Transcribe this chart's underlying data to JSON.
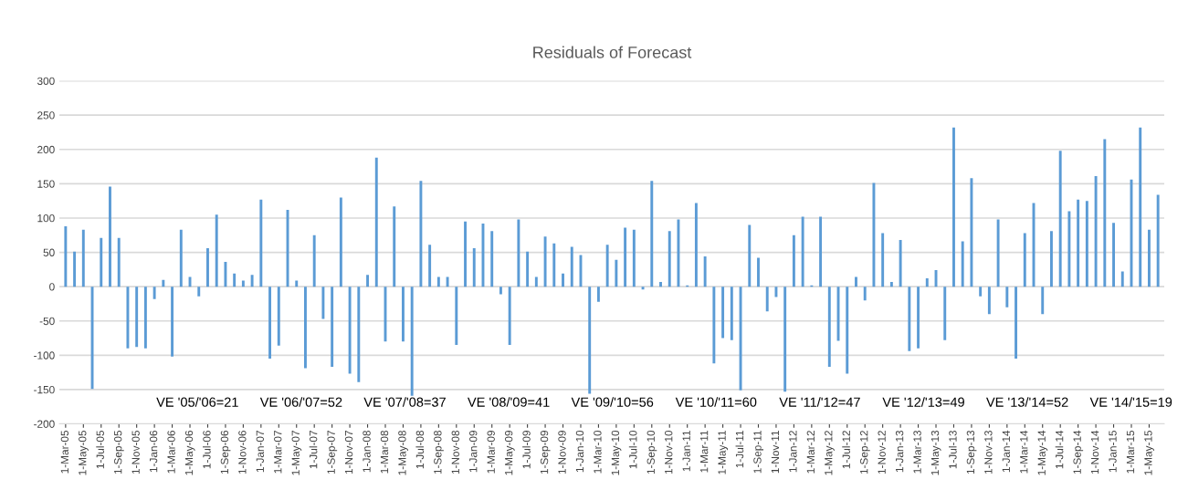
{
  "chart_data": {
    "type": "bar",
    "title": "Residuals of Forecast",
    "categories": [
      "1-Mar-05",
      null,
      "1-May-05",
      null,
      "1-Jul-05",
      null,
      "1-Sep-05",
      null,
      "1-Nov-05",
      null,
      "1-Jan-06",
      null,
      "1-Mar-06",
      null,
      "1-May-06",
      null,
      "1-Jul-06",
      null,
      "1-Sep-06",
      null,
      "1-Nov-06",
      null,
      "1-Jan-07",
      null,
      "1-Mar-07",
      null,
      "1-May-07",
      null,
      "1-Jul-07",
      null,
      "1-Sep-07",
      null,
      "1-Nov-07",
      null,
      "1-Jan-08",
      null,
      "1-Mar-08",
      null,
      "1-May-08",
      null,
      "1-Jul-08",
      null,
      "1-Sep-08",
      null,
      "1-Nov-08",
      null,
      "1-Jan-09",
      null,
      "1-Mar-09",
      null,
      "1-May-09",
      null,
      "1-Jul-09",
      null,
      "1-Sep-09",
      null,
      "1-Nov-09",
      null,
      "1-Jan-10",
      null,
      "1-Mar-10",
      null,
      "1-May-10",
      null,
      "1-Jul-10",
      null,
      "1-Sep-10",
      null,
      "1-Nov-10",
      null,
      "1-Jan-11",
      null,
      "1-Mar-11",
      null,
      "1-May-11",
      null,
      "1-Jul-11",
      null,
      "1-Sep-11",
      null,
      "1-Nov-11",
      null,
      "1-Jan-12",
      null,
      "1-Mar-12",
      null,
      "1-May-12",
      null,
      "1-Jul-12",
      null,
      "1-Sep-12",
      null,
      "1-Nov-12",
      null,
      "1-Jan-13",
      null,
      "1-Mar-13",
      null,
      "1-May-13",
      null,
      "1-Jul-13",
      null,
      "1-Sep-13",
      null,
      "1-Nov-13",
      null,
      "1-Jan-14",
      null,
      "1-Mar-14",
      null,
      "1-May-14",
      null,
      "1-Jul-14",
      null,
      "1-Sep-14",
      null,
      "1-Nov-14",
      null,
      "1-Jan-15",
      null,
      "1-Mar-15",
      null,
      "1-May-15",
      null
    ],
    "values": [
      88,
      51,
      83,
      -149,
      71,
      146,
      71,
      -90,
      -88,
      -90,
      -18,
      10,
      -102,
      83,
      14,
      -14,
      56,
      105,
      36,
      19,
      9,
      17,
      127,
      -105,
      -86,
      112,
      9,
      -119,
      75,
      -47,
      -117,
      130,
      -127,
      -139,
      17,
      188,
      -80,
      117,
      -80,
      -159,
      154,
      61,
      14,
      14,
      -85,
      95,
      56,
      92,
      81,
      -11,
      -85,
      98,
      51,
      14,
      73,
      63,
      19,
      58,
      46,
      -156,
      -22,
      61,
      39,
      86,
      83,
      -4,
      154,
      7,
      81,
      98,
      2,
      122,
      44,
      -112,
      -75,
      -78,
      -151,
      90,
      42,
      -36,
      -15,
      -153,
      75,
      102,
      2,
      102,
      -117,
      -79,
      -127,
      14,
      -20,
      151,
      78,
      7,
      68,
      -94,
      -90,
      12,
      24,
      -78,
      232,
      66,
      158,
      -14,
      -40,
      98,
      -30,
      -105,
      78,
      122,
      -40,
      81,
      198,
      110,
      127,
      125,
      161,
      215,
      93,
      22,
      156,
      232,
      83,
      134
    ],
    "color": "#5b9bd5",
    "ylim": [
      -200,
      300
    ],
    "yticks": [
      -200,
      -150,
      -100,
      -50,
      0,
      50,
      100,
      150,
      200,
      250,
      300
    ],
    "grid": "y",
    "legend": false,
    "annotations": [
      "VE '05/'06=21",
      "VE '06/'07=52",
      "VE '07/'08=37",
      "VE '08/'09=41",
      "VE '09/'10=56",
      "VE '10/'11=60",
      "VE '11/'12=47",
      "VE '12/'13=49",
      "VE '13/'14=52",
      "VE '14/'15=19"
    ]
  }
}
